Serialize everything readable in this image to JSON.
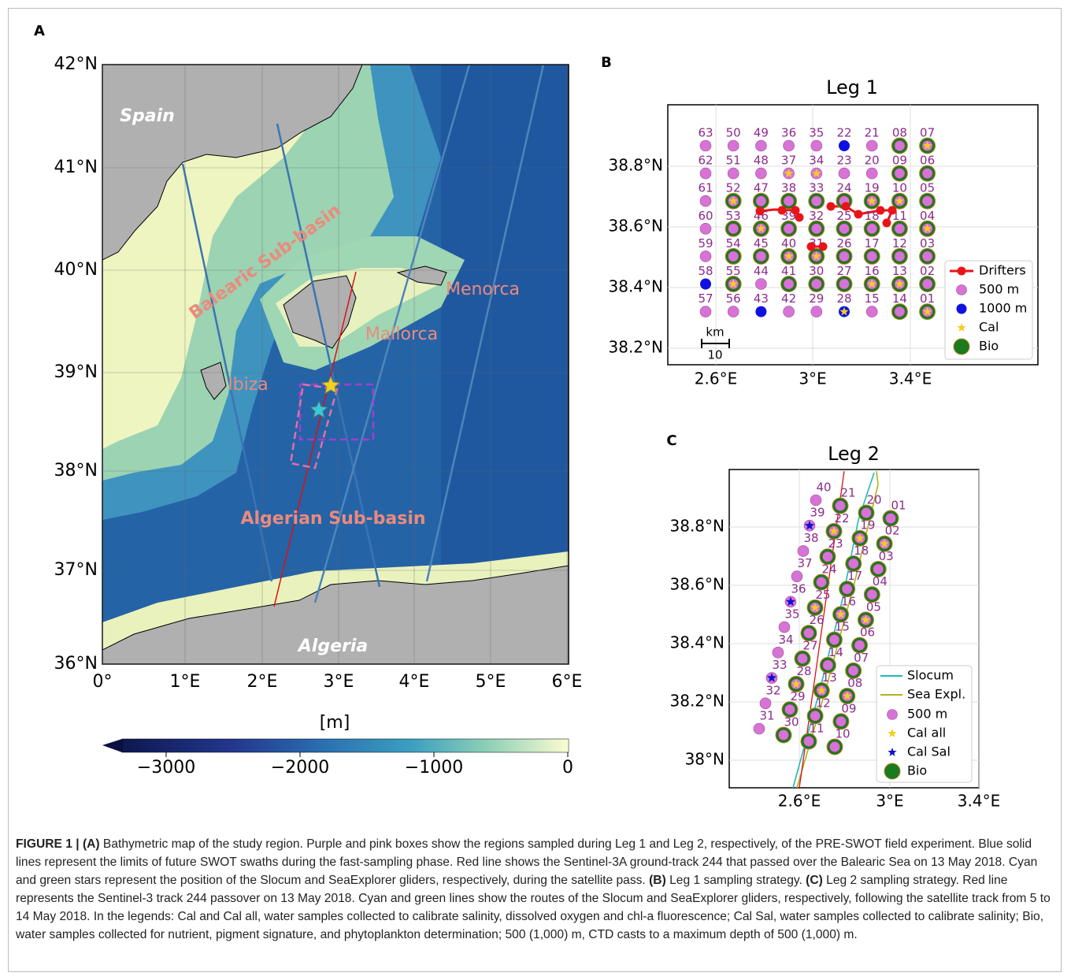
{
  "panel_labels": [
    "A",
    "B",
    "C"
  ],
  "map": {
    "lat_ticks": [
      "42°N",
      "41°N",
      "40°N",
      "39°N",
      "38°N",
      "37°N",
      "36°N"
    ],
    "lon_ticks": [
      "0°",
      "1°E",
      "2°E",
      "3°E",
      "4°E",
      "5°E",
      "6°E"
    ],
    "places": {
      "spain": "Spain",
      "balearic": "Balearic Sub-basin",
      "menorca": "Menorca",
      "mallorca": "Mallorca",
      "ibiza": "Ibiza",
      "algerian": "Algerian Sub-basin",
      "algeria": "Algeria"
    },
    "colorbar": {
      "label": "[m]",
      "ticks": [
        "−3000",
        "−2000",
        "−1000",
        "0"
      ]
    }
  },
  "leg1": {
    "title": "Leg 1",
    "yticks": [
      "38.8°N",
      "38.6°N",
      "38.4°N",
      "38.2°N"
    ],
    "xticks": [
      "2.6°E",
      "3°E",
      "3.4°E"
    ],
    "scale": {
      "unit": "km",
      "length": "10"
    },
    "legend": [
      "Drifters",
      "500 m",
      "1000 m",
      "Cal",
      "Bio"
    ],
    "stations": [
      [
        "63",
        "50",
        "49",
        "36",
        "35",
        "22",
        "21",
        "08",
        "07"
      ],
      [
        "62",
        "51",
        "48",
        "37",
        "34",
        "23",
        "20",
        "09",
        "06"
      ],
      [
        "61",
        "52",
        "47",
        "38",
        "33",
        "24",
        "19",
        "10",
        "05"
      ],
      [
        "60",
        "53",
        "46",
        "39",
        "32",
        "25",
        "18",
        "11",
        "04"
      ],
      [
        "59",
        "54",
        "45",
        "40",
        "31",
        "26",
        "17",
        "12",
        "03"
      ],
      [
        "58",
        "55",
        "44",
        "41",
        "30",
        "27",
        "16",
        "13",
        "02"
      ],
      [
        "57",
        "56",
        "43",
        "42",
        "29",
        "28",
        "15",
        "14",
        "01"
      ]
    ],
    "kinds": [
      [
        "p",
        "p",
        "p",
        "p",
        "p",
        "b",
        "p",
        "g",
        "gc"
      ],
      [
        "p",
        "p",
        "p",
        "pc",
        "pc",
        "p",
        "p",
        "g",
        "g"
      ],
      [
        "p",
        "gc",
        "g",
        "g",
        "g",
        "g",
        "gc",
        "gc",
        "g"
      ],
      [
        "p",
        "g",
        "gc",
        "g",
        "g",
        "g",
        "g",
        "g",
        "gc"
      ],
      [
        "p",
        "g",
        "g",
        "gc",
        "gc",
        "g",
        "g",
        "g",
        "g"
      ],
      [
        "b",
        "gc",
        "p",
        "g",
        "g",
        "g",
        "gc",
        "gc",
        "g"
      ],
      [
        "p",
        "p",
        "b",
        "p",
        "p",
        "bc",
        "p",
        "g",
        "gc"
      ]
    ]
  },
  "leg2": {
    "title": "Leg 2",
    "yticks": [
      "38.8°N",
      "38.6°N",
      "38.4°N",
      "38.2°N",
      "38°N"
    ],
    "xticks": [
      "2.6°E",
      "3°E",
      "3.4°E"
    ],
    "legend": [
      "Slocum",
      "Sea Expl.",
      "500 m",
      "Cal all",
      "Cal Sal",
      "Bio"
    ],
    "columns": [
      [
        "01",
        "02",
        "03",
        "04",
        "05",
        "06",
        "07",
        "08",
        "09",
        "10"
      ],
      [
        "20",
        "19",
        "18",
        "17",
        "16",
        "15",
        "14",
        "13",
        "12",
        "11"
      ],
      [
        "21",
        "22",
        "23",
        "24",
        "25",
        "26",
        "27",
        "28",
        "29",
        "30"
      ],
      [
        "40",
        "39",
        "38",
        "37",
        "36",
        "35",
        "34",
        "33",
        "32",
        "31"
      ]
    ],
    "kinds": [
      [
        "g",
        "gc",
        "g",
        "g",
        "gc",
        "g",
        "g",
        "gc",
        "g",
        "g"
      ],
      [
        "g",
        "gc",
        "g",
        "g",
        "gc",
        "g",
        "g",
        "gc",
        "g",
        "g"
      ],
      [
        "g",
        "gc",
        "g",
        "g",
        "gc",
        "g",
        "g",
        "gc",
        "g",
        "g"
      ],
      [
        "p",
        "s",
        "p",
        "p",
        "s",
        "p",
        "p",
        "s",
        "p",
        "p"
      ]
    ]
  },
  "caption": [
    {
      "text": "FIGURE 1 | (A)",
      "bold": true
    },
    {
      "text": " Bathymetric map of the study region. Purple and pink boxes show the regions sampled during Leg 1 and Leg 2, respectively, of the PRE-SWOT field experiment. Blue solid lines represent the limits of future SWOT swaths during the fast-sampling phase. Red line shows the Sentinel-3A ground-track 244 that passed over the Balearic Sea on 13 May 2018. Cyan and green stars represent the position of the Slocum and SeaExplorer gliders, respectively, during the satellite pass. ",
      "bold": false
    },
    {
      "text": "(B)",
      "bold": true
    },
    {
      "text": " Leg 1 sampling strategy. ",
      "bold": false
    },
    {
      "text": "(C)",
      "bold": true
    },
    {
      "text": " Leg 2 sampling strategy. Red line represents the Sentinel-3 track 244 passover on 13 May 2018. Cyan and green lines show the routes of the Slocum and SeaExplorer gliders, respectively, following the satellite track from 5 to 14 May 2018. In the legends: Cal and Cal all, water samples collected to calibrate salinity, dissolved oxygen and chl-a fluorescence; Cal Sal, water samples collected to calibrate salinity; Bio, water samples collected for nutrient, pigment signature, and phytoplankton determination; 500 (1,000) m, CTD casts to a maximum depth of 500 (1,000) m.",
      "bold": false
    }
  ]
}
